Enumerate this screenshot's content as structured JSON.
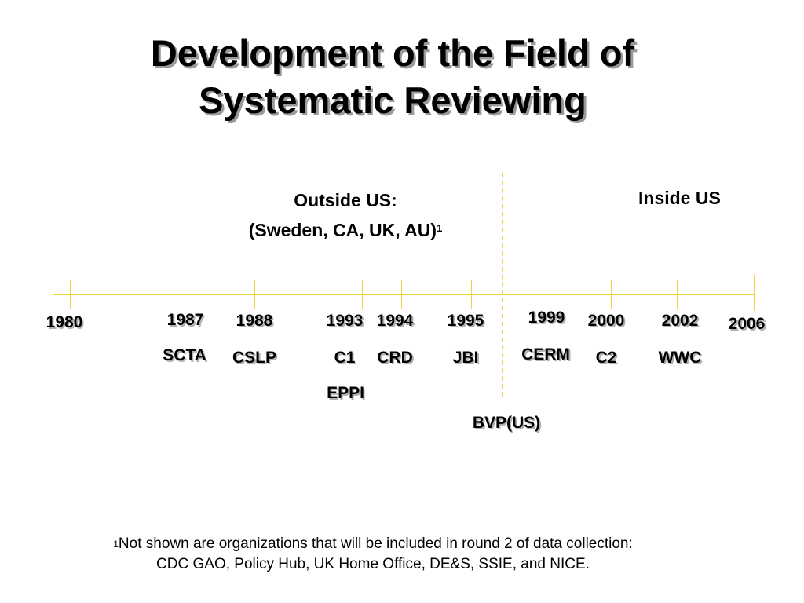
{
  "title": {
    "line1": "Development of the Field of",
    "line2": "Systematic Reviewing"
  },
  "outside_us": {
    "line1": "Outside US:",
    "line2": "(Sweden, CA, UK, AU)",
    "note_marker": "1"
  },
  "inside_us": {
    "label": "Inside US"
  },
  "timeline": {
    "start_year": "1980",
    "end_year": "2006",
    "events": [
      {
        "year": "1987",
        "orgs": [
          "SCTA"
        ]
      },
      {
        "year": "1988",
        "orgs": [
          "CSLP"
        ]
      },
      {
        "year": "1993",
        "orgs": [
          "C1",
          "EPPI"
        ]
      },
      {
        "year": "1994",
        "orgs": [
          "CRD"
        ]
      },
      {
        "year": "1995",
        "orgs": [
          "JBI"
        ]
      },
      {
        "year": "1999",
        "orgs": [
          "CERM"
        ]
      },
      {
        "year": "2000",
        "orgs": [
          "C2"
        ]
      },
      {
        "year": "2002",
        "orgs": [
          "WWC"
        ]
      }
    ],
    "extra_label": "BVP(US)"
  },
  "footnote": {
    "marker": "1",
    "line1": "Not shown are organizations that will be included in round 2 of data collection:",
    "line2": "CDC GAO, Policy Hub, UK Home Office, DE&S, SSIE, and NICE."
  }
}
